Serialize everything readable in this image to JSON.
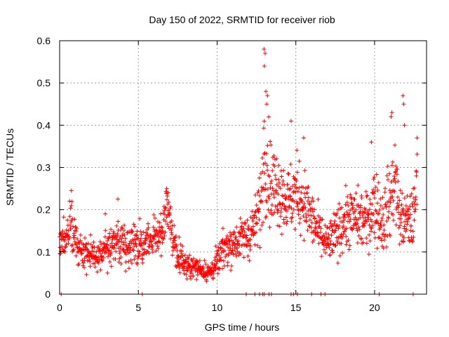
{
  "chart_data": {
    "type": "scatter",
    "title": "Day 150 of 2022, SRMTID for receiver riob",
    "xlabel": "GPS time / hours",
    "ylabel": "SRMTID / TECUs",
    "xlim": [
      0,
      23.3
    ],
    "ylim": [
      0,
      0.6
    ],
    "xticks": [
      0,
      5,
      10,
      15,
      20
    ],
    "yticks": [
      0,
      0.1,
      0.2,
      0.3,
      0.4,
      0.5,
      0.6
    ],
    "xtick_labels": [
      "0",
      "5",
      "10",
      "15",
      "20"
    ],
    "ytick_labels": [
      "0",
      "0.1",
      "0.2",
      "0.3",
      "0.4",
      "0.5",
      "0.6"
    ],
    "grid": true,
    "marker": "+",
    "series_color": "#ff0000",
    "series": [
      {
        "name": "SRMTID",
        "trend_x": [
          0,
          0.3,
          0.7,
          1.0,
          1.5,
          2.0,
          2.5,
          3.0,
          3.5,
          4.0,
          4.5,
          5.0,
          5.5,
          6.0,
          6.5,
          6.8,
          7.0,
          7.3,
          7.6,
          8.0,
          8.5,
          9.0,
          9.5,
          10.0,
          10.5,
          11.0,
          11.5,
          12.0,
          12.5,
          12.8,
          13.0,
          13.3,
          13.6,
          14.0,
          14.5,
          15.0,
          15.5,
          16.0,
          16.5,
          17.0,
          17.5,
          18.0,
          18.5,
          19.0,
          19.5,
          20.0,
          20.5,
          21.0,
          21.3,
          21.6,
          22.0,
          22.5,
          22.7
        ],
        "trend_y": [
          0.14,
          0.12,
          0.16,
          0.12,
          0.1,
          0.1,
          0.09,
          0.11,
          0.13,
          0.12,
          0.12,
          0.11,
          0.12,
          0.13,
          0.15,
          0.2,
          0.17,
          0.12,
          0.09,
          0.07,
          0.065,
          0.06,
          0.05,
          0.075,
          0.11,
          0.12,
          0.13,
          0.14,
          0.17,
          0.22,
          0.35,
          0.28,
          0.25,
          0.25,
          0.22,
          0.24,
          0.22,
          0.18,
          0.14,
          0.12,
          0.14,
          0.17,
          0.18,
          0.18,
          0.17,
          0.22,
          0.17,
          0.22,
          0.28,
          0.18,
          0.17,
          0.18,
          0.27
        ],
        "spread_y": [
          0.04,
          0.04,
          0.05,
          0.04,
          0.035,
          0.035,
          0.035,
          0.04,
          0.045,
          0.045,
          0.04,
          0.04,
          0.04,
          0.045,
          0.05,
          0.05,
          0.05,
          0.04,
          0.03,
          0.025,
          0.02,
          0.02,
          0.02,
          0.03,
          0.04,
          0.04,
          0.04,
          0.05,
          0.06,
          0.08,
          0.12,
          0.1,
          0.09,
          0.08,
          0.07,
          0.08,
          0.07,
          0.06,
          0.05,
          0.04,
          0.05,
          0.06,
          0.06,
          0.06,
          0.06,
          0.08,
          0.07,
          0.08,
          0.09,
          0.06,
          0.06,
          0.06,
          0.08
        ],
        "n_points": 1500,
        "peaks": [
          {
            "x": 12.98,
            "y": 0.58
          },
          {
            "x": 13.05,
            "y": 0.57
          },
          {
            "x": 13.0,
            "y": 0.54
          },
          {
            "x": 13.1,
            "y": 0.48
          },
          {
            "x": 13.2,
            "y": 0.47
          },
          {
            "x": 13.15,
            "y": 0.45
          },
          {
            "x": 14.7,
            "y": 0.41
          },
          {
            "x": 15.5,
            "y": 0.37
          },
          {
            "x": 19.8,
            "y": 0.36
          },
          {
            "x": 21.1,
            "y": 0.43
          },
          {
            "x": 21.05,
            "y": 0.42
          },
          {
            "x": 21.8,
            "y": 0.47
          },
          {
            "x": 21.85,
            "y": 0.45
          },
          {
            "x": 21.9,
            "y": 0.4
          },
          {
            "x": 22.7,
            "y": 0.37
          },
          {
            "x": 0.75,
            "y": 0.245
          },
          {
            "x": 6.8,
            "y": 0.25
          },
          {
            "x": 6.9,
            "y": 0.24
          },
          {
            "x": 3.7,
            "y": 0.225
          },
          {
            "x": 2.9,
            "y": 0.19
          }
        ],
        "zero_points_x": [
          0.1,
          5.25,
          11.85,
          12.4,
          12.7,
          12.9,
          13.0,
          13.3,
          13.45,
          14.7,
          14.85,
          15.1,
          16.0,
          16.6,
          16.85,
          20.3,
          22.45
        ]
      }
    ]
  }
}
